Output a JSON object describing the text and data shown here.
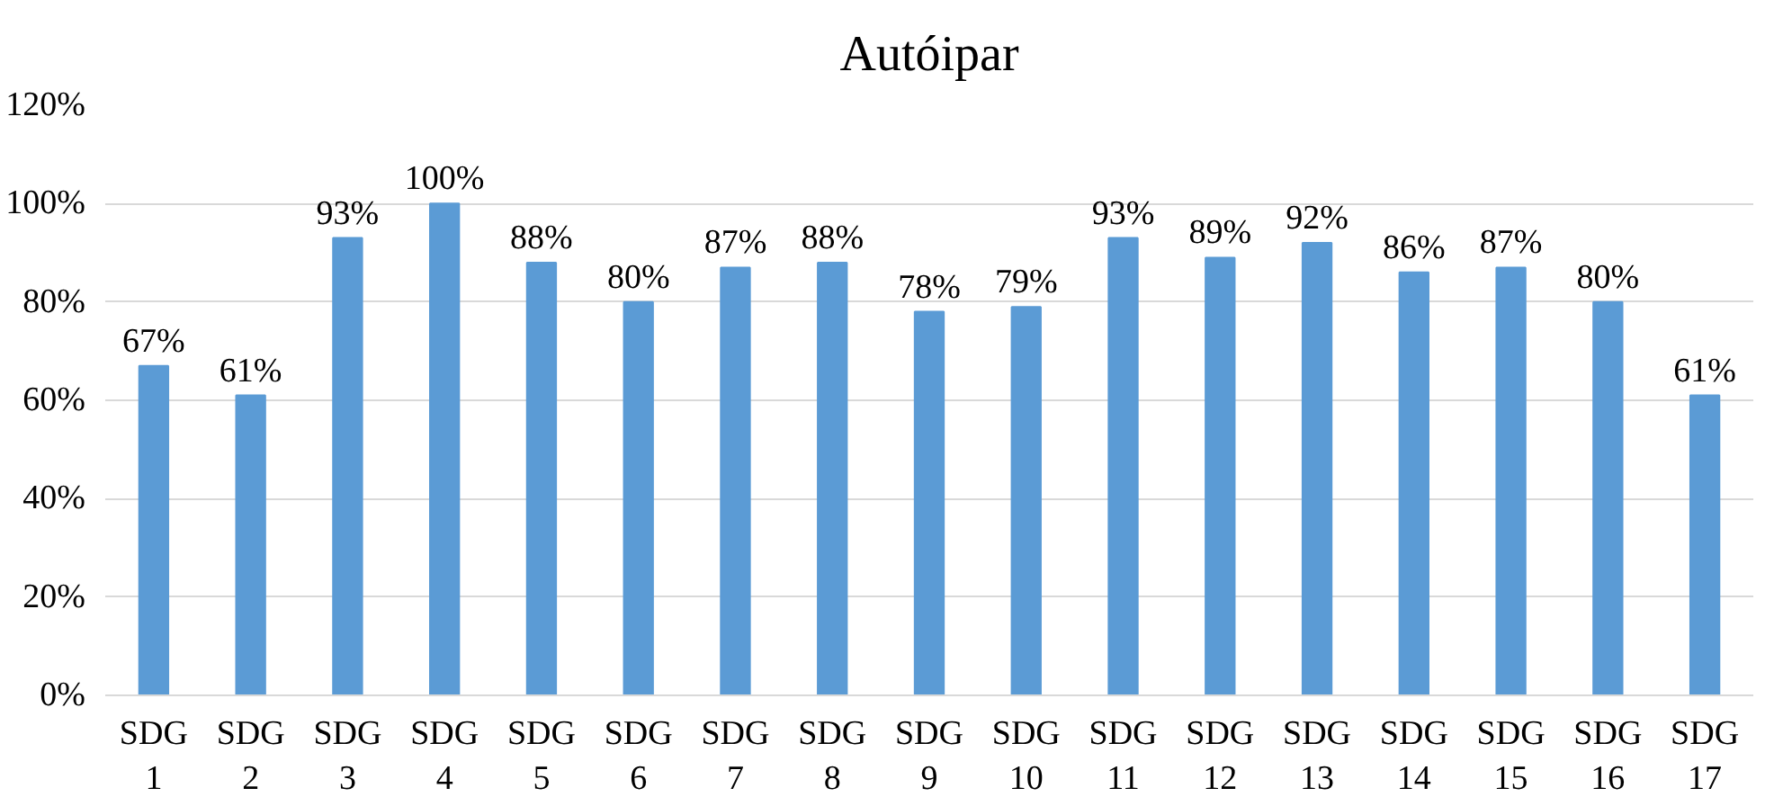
{
  "chart_data": {
    "type": "bar",
    "title": "Autóipar",
    "categories": [
      "SDG 1",
      "SDG 2",
      "SDG 3",
      "SDG 4",
      "SDG 5",
      "SDG 6",
      "SDG 7",
      "SDG 8",
      "SDG 9",
      "SDG 10",
      "SDG 11",
      "SDG 12",
      "SDG 13",
      "SDG 14",
      "SDG 15",
      "SDG 16",
      "SDG 17"
    ],
    "values": [
      67,
      61,
      93,
      100,
      88,
      80,
      87,
      88,
      78,
      79,
      93,
      89,
      92,
      86,
      87,
      80,
      61
    ],
    "value_labels": [
      "67%",
      "61%",
      "93%",
      "100%",
      "88%",
      "80%",
      "87%",
      "88%",
      "78%",
      "79%",
      "93%",
      "89%",
      "92%",
      "86%",
      "87%",
      "80%",
      "61%"
    ],
    "color": "#5b9bd5",
    "ylim": [
      0,
      120
    ],
    "yticks": [
      {
        "value": 0,
        "label": "0%"
      },
      {
        "value": 20,
        "label": "20%"
      },
      {
        "value": 40,
        "label": "40%"
      },
      {
        "value": 60,
        "label": "60%"
      },
      {
        "value": 80,
        "label": "80%"
      },
      {
        "value": 100,
        "label": "100%"
      },
      {
        "value": 120,
        "label": "120%"
      }
    ],
    "grid": "y"
  }
}
